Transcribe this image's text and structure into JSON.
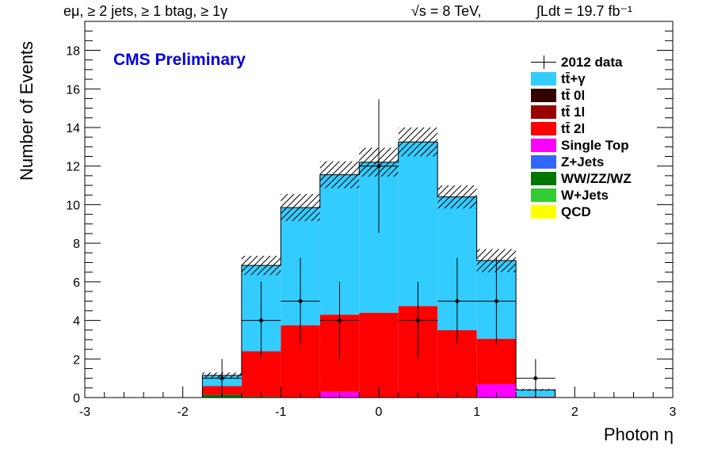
{
  "header": {
    "selection": "eμ, ≥ 2 jets, ≥ 1 btag, ≥ 1γ",
    "sqrt_s": "√s = 8 TeV,",
    "lumi": "∫Ldt = 19.7 fb⁻¹"
  },
  "cms_label": "CMS Preliminary",
  "chart_data": {
    "type": "bar",
    "stacked": true,
    "xlabel": "Photon η",
    "ylabel": "Number of Events",
    "xlim": [
      -3,
      3
    ],
    "ylim": [
      0,
      19.5
    ],
    "x_ticks": [
      "-3",
      "-2",
      "-1",
      "0",
      "1",
      "2",
      "3"
    ],
    "y_ticks": [
      "0",
      "2",
      "4",
      "6",
      "8",
      "10",
      "12",
      "14",
      "16",
      "18"
    ],
    "bin_edges": [
      -1.8,
      -1.4,
      -1.0,
      -0.6,
      -0.2,
      0.2,
      0.6,
      1.0,
      1.4,
      1.8
    ],
    "series": [
      {
        "name": "QCD",
        "color": "#ffff00",
        "values": [
          0,
          0,
          0,
          0,
          0,
          0,
          0,
          0,
          0
        ]
      },
      {
        "name": "W+Jets",
        "color": "#33cc33",
        "values": [
          0,
          0,
          0,
          0,
          0,
          0,
          0,
          0,
          0
        ]
      },
      {
        "name": "WW/ZZ/WZ",
        "color": "#007700",
        "values": [
          0.15,
          0.05,
          0,
          0,
          0,
          0,
          0,
          0,
          0
        ]
      },
      {
        "name": "Z+Jets",
        "color": "#3366ff",
        "values": [
          0,
          0,
          0,
          0,
          0,
          0,
          0,
          0,
          0
        ]
      },
      {
        "name": "Single Top",
        "color": "#ff00ff",
        "values": [
          0,
          0,
          0,
          0.3,
          0,
          0,
          0,
          0.7,
          0
        ]
      },
      {
        "name": "tt̄ 2l",
        "color": "#ff0000",
        "values": [
          0.45,
          2.35,
          3.75,
          4.0,
          4.4,
          4.75,
          3.5,
          2.35,
          0.05
        ]
      },
      {
        "name": "tt̄ 1l",
        "color": "#990000",
        "values": [
          0,
          0,
          0,
          0,
          0,
          0,
          0,
          0,
          0
        ]
      },
      {
        "name": "tt̄ 0l",
        "color": "#330000",
        "values": [
          0,
          0,
          0,
          0,
          0,
          0,
          0,
          0,
          0
        ]
      },
      {
        "name": "tt̄+γ",
        "color": "#33ccff",
        "values": [
          0.55,
          4.45,
          6.1,
          7.25,
          7.8,
          8.5,
          6.9,
          4.05,
          0.35
        ]
      }
    ],
    "uncertainty_hatch": {
      "totals": [
        1.15,
        6.85,
        9.85,
        11.55,
        12.2,
        13.25,
        10.4,
        7.1,
        0.4
      ],
      "errors": [
        0.15,
        0.5,
        0.7,
        0.7,
        0.75,
        0.75,
        0.6,
        0.6,
        0.05
      ]
    },
    "data": {
      "name": "2012 data",
      "x": [
        -1.6,
        -1.2,
        -0.8,
        -0.4,
        0.0,
        0.4,
        0.8,
        1.2,
        1.6
      ],
      "y": [
        1,
        4,
        5,
        4,
        12,
        4,
        5,
        5,
        1
      ],
      "err": [
        1.0,
        2.0,
        2.24,
        2.0,
        3.46,
        2.0,
        2.24,
        2.24,
        1.0
      ],
      "x_err": 0.2
    },
    "legend_order": [
      "2012 data",
      "tt̄+γ",
      "tt̄ 0l",
      "tt̄ 1l",
      "tt̄ 2l",
      "Single Top",
      "Z+Jets",
      "WW/ZZ/WZ",
      "W+Jets",
      "QCD"
    ],
    "legend_position": "top-right"
  }
}
